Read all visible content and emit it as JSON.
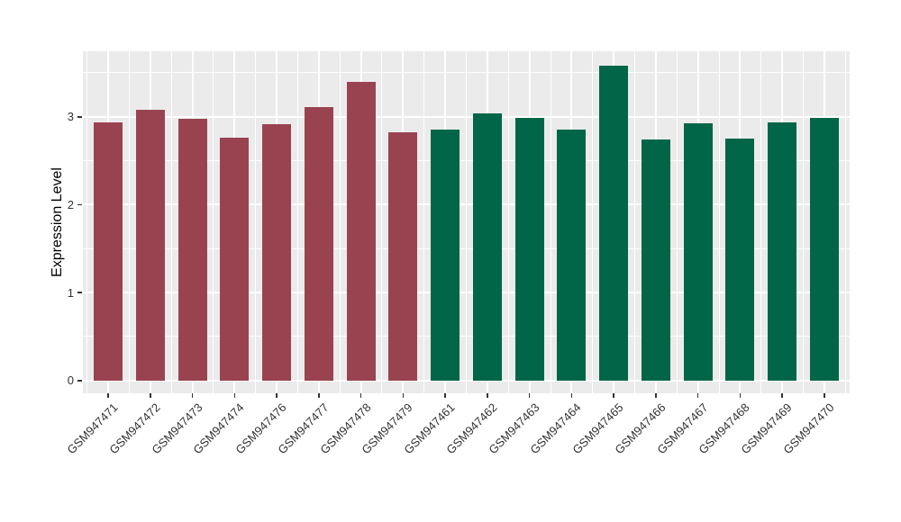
{
  "chart_data": {
    "type": "bar",
    "title": "",
    "xlabel": "",
    "ylabel": "Expression Level",
    "categories": [
      "GSM947471",
      "GSM947472",
      "GSM947473",
      "GSM947474",
      "GSM947476",
      "GSM947477",
      "GSM947478",
      "GSM947479",
      "GSM947461",
      "GSM947462",
      "GSM947463",
      "GSM947464",
      "GSM947465",
      "GSM947466",
      "GSM947467",
      "GSM947468",
      "GSM947469",
      "GSM947470"
    ],
    "values": [
      2.94,
      3.08,
      2.98,
      2.76,
      2.92,
      3.11,
      3.4,
      2.82,
      2.85,
      3.04,
      2.99,
      2.85,
      3.58,
      2.74,
      2.93,
      2.75,
      2.94,
      2.99
    ],
    "groups": [
      "group-1",
      "group-1",
      "group-1",
      "group-1",
      "group-1",
      "group-1",
      "group-1",
      "group-1",
      "group-2",
      "group-2",
      "group-2",
      "group-2",
      "group-2",
      "group-2",
      "group-2",
      "group-2",
      "group-2",
      "group-2"
    ],
    "group_colors": {
      "group-1": "#9A4350",
      "group-2": "#006647"
    },
    "yticks": [
      0,
      1,
      2,
      3
    ],
    "ytick_labels": [
      "0",
      "1",
      "2",
      "3"
    ],
    "ylim": [
      -0.145,
      3.745
    ],
    "grid": true,
    "legend_position": "none",
    "panel_background": "#EBEBEB",
    "grid_color": "#FFFFFF",
    "axis_text_color": "#333333",
    "tick_mark_color": "#333333"
  }
}
